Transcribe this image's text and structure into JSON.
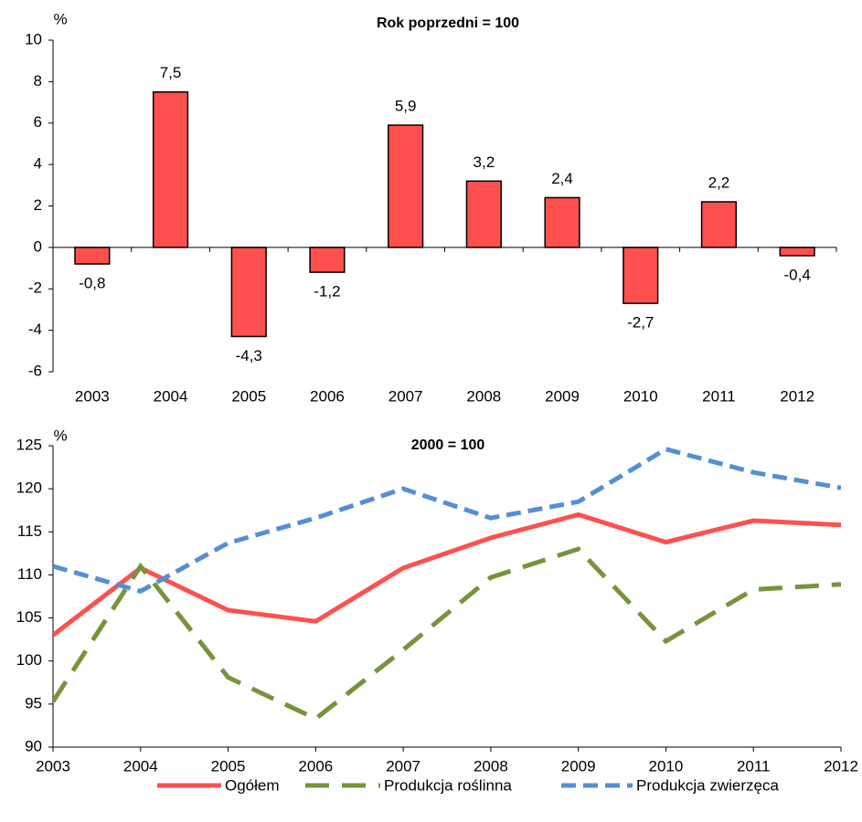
{
  "chart_data": [
    {
      "type": "bar",
      "title": "Rok poprzedni = 100",
      "y_label": "%",
      "categories": [
        "2003",
        "2004",
        "2005",
        "2006",
        "2007",
        "2008",
        "2009",
        "2010",
        "2011",
        "2012"
      ],
      "values": [
        -0.8,
        7.5,
        -4.3,
        -1.2,
        5.9,
        3.2,
        2.4,
        -2.7,
        2.2,
        -0.4
      ],
      "value_labels": [
        "-0,8",
        "7,5",
        "-4,3",
        "-1,2",
        "5,9",
        "3,2",
        "2,4",
        "-2,7",
        "2,2",
        "-0,4"
      ],
      "color": "#ff5050",
      "ylim": [
        -6,
        10
      ],
      "yticks": [
        -6,
        -4,
        -2,
        0,
        2,
        4,
        6,
        8,
        10
      ]
    },
    {
      "type": "line",
      "title": "2000 = 100",
      "y_label": "%",
      "x": [
        2003,
        2004,
        2005,
        2006,
        2007,
        2008,
        2009,
        2010,
        2011,
        2012
      ],
      "xlim": [
        2003,
        2012
      ],
      "xticks": [
        2003,
        2004,
        2005,
        2006,
        2007,
        2008,
        2009,
        2010,
        2011,
        2012
      ],
      "ylim": [
        90,
        125
      ],
      "yticks": [
        90,
        95,
        100,
        105,
        110,
        115,
        120,
        125
      ],
      "legend": "bottom",
      "series": [
        {
          "name": "Ogółem",
          "color": "#ff5050",
          "line_style": "solid",
          "values": [
            103,
            110.8,
            105.9,
            104.6,
            110.8,
            114.3,
            117.0,
            113.8,
            116.3,
            115.8
          ]
        },
        {
          "name": "Produkcja roślinna",
          "color": "#77933c",
          "line_style": "long-dash",
          "values": [
            95.3,
            111,
            98.1,
            93.3,
            101.3,
            109.7,
            113.0,
            102.3,
            108.3,
            108.9
          ]
        },
        {
          "name": "Produkcja zwierzęca",
          "color": "#558ed5",
          "line_style": "dash",
          "values": [
            111,
            108.1,
            113.7,
            116.6,
            120.0,
            116.6,
            118.5,
            124.6,
            121.9,
            120.1
          ]
        }
      ]
    }
  ]
}
